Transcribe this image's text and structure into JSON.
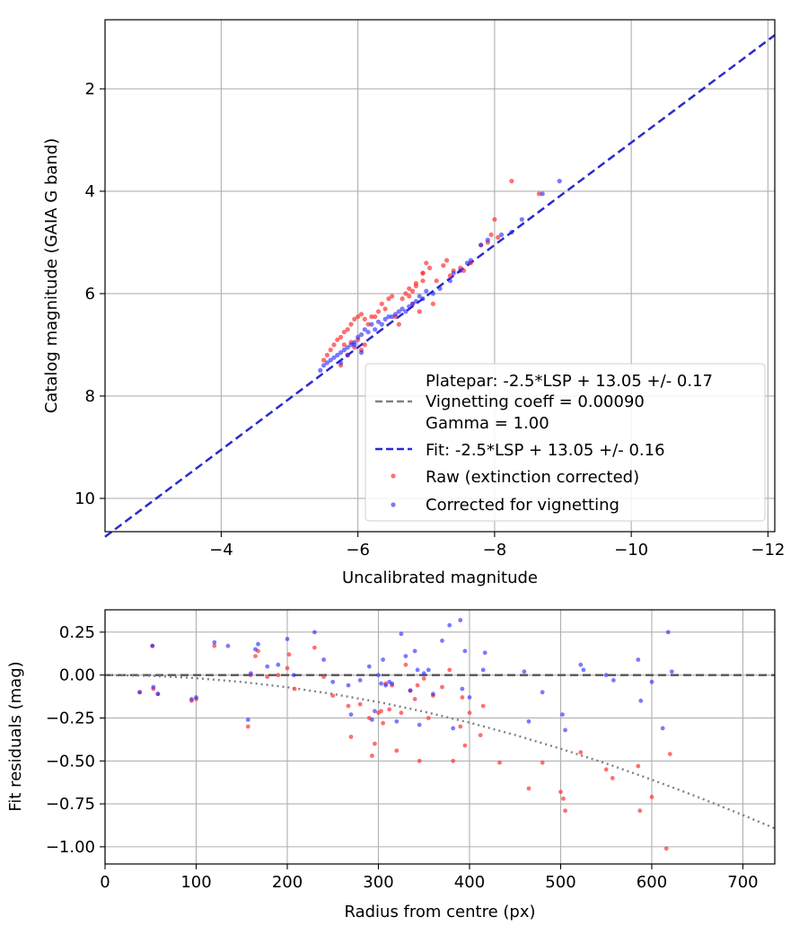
{
  "chart_data": [
    {
      "type": "scatter",
      "title": "",
      "xlabel": "Uncalibrated magnitude",
      "ylabel": "Catalog magnitude (GAIA G band)",
      "xlim": [
        -2.3,
        -12.1
      ],
      "ylim": [
        10.65,
        0.65
      ],
      "x_inverted": true,
      "y_inverted": true,
      "grid": true,
      "legend_position": "lower-right",
      "x_ticks": [
        -4,
        -6,
        -8,
        -10,
        -12
      ],
      "x_tick_labels": [
        "−4",
        "−6",
        "−8",
        "−10",
        "−12"
      ],
      "y_ticks": [
        2,
        4,
        6,
        8,
        10
      ],
      "y_tick_labels": [
        "2",
        "4",
        "6",
        "8",
        "10"
      ],
      "lines": [
        {
          "name": "Platepar: -2.5*LSP + 13.05 +/- 0.17\nVignetting coeff = 0.00090\nGamma = 1.00",
          "color": "#808080",
          "dash": "dashed",
          "x": [
            -2.3,
            -12.1
          ],
          "y": [
            10.75,
            0.95
          ]
        },
        {
          "name": "Fit: -2.5*LSP + 13.05 +/- 0.16",
          "color": "#2a2ad4",
          "dash": "dashed",
          "x": [
            -2.3,
            -12.1
          ],
          "y": [
            10.75,
            0.95
          ]
        }
      ],
      "series": [
        {
          "name": "Raw (extinction corrected)",
          "color": "#ff3333",
          "x": [
            -8.25,
            -8.65,
            -8.0,
            -7.95,
            -7.8,
            -7.5,
            -7.3,
            -7.25,
            -7.0,
            -6.95,
            -6.85,
            -6.8,
            -7.05,
            -6.95,
            -6.75,
            -6.7,
            -6.5,
            -6.4,
            -6.3,
            -6.05,
            -6.0,
            -5.95,
            -5.9,
            -5.85,
            -5.8,
            -5.75,
            -5.7,
            -5.65,
            -6.45,
            -6.35,
            -6.2,
            -6.1,
            -6.55,
            -6.6,
            -6.9,
            -7.1,
            -7.35,
            -7.4,
            -7.15,
            -5.6,
            -5.55,
            -5.5,
            -6.25,
            -6.15,
            -5.9,
            -5.8,
            -5.95,
            -6.0,
            -6.05,
            -6.1,
            -5.85,
            -6.75,
            -6.65,
            -6.8,
            -7.55,
            -7.65,
            -5.75,
            -6.85,
            -6.95,
            -7.9,
            -8.05
          ],
          "y": [
            3.8,
            4.05,
            4.55,
            4.85,
            5.05,
            5.5,
            5.35,
            5.45,
            5.4,
            5.6,
            5.8,
            5.95,
            5.5,
            5.6,
            5.9,
            6.0,
            6.05,
            6.3,
            6.35,
            6.4,
            6.45,
            6.5,
            6.6,
            6.7,
            6.75,
            6.85,
            6.9,
            7.0,
            6.1,
            6.2,
            6.45,
            6.5,
            6.45,
            6.6,
            6.35,
            6.2,
            5.65,
            5.55,
            5.75,
            7.1,
            7.2,
            7.3,
            6.45,
            6.6,
            6.95,
            7.0,
            7.05,
            6.9,
            7.1,
            7.0,
            7.2,
            6.05,
            6.1,
            6.2,
            5.55,
            5.4,
            7.4,
            5.85,
            5.75,
            5.0,
            4.9
          ],
          "point_count": 61
        },
        {
          "name": "Corrected for vignetting",
          "color": "#2222ff",
          "x": [
            -8.95,
            -8.7,
            -8.4,
            -8.1,
            -7.9,
            -7.65,
            -7.5,
            -7.35,
            -7.2,
            -7.1,
            -6.95,
            -6.85,
            -6.75,
            -6.6,
            -6.55,
            -6.45,
            -6.4,
            -6.3,
            -6.2,
            -6.1,
            -6.05,
            -6.0,
            -5.95,
            -5.9,
            -5.85,
            -5.8,
            -5.75,
            -5.7,
            -5.65,
            -5.6,
            -5.55,
            -5.5,
            -5.45,
            -6.65,
            -6.7,
            -6.8,
            -6.9,
            -7.0,
            -6.25,
            -6.15,
            -5.95,
            -6.05,
            -6.35,
            -6.5,
            -5.85,
            -5.75,
            -7.4,
            -7.6,
            -7.8,
            -8.25
          ],
          "y": [
            3.8,
            4.05,
            4.55,
            4.85,
            4.95,
            5.35,
            5.55,
            5.75,
            5.9,
            6.0,
            6.1,
            6.15,
            6.25,
            6.35,
            6.4,
            6.45,
            6.5,
            6.55,
            6.6,
            6.7,
            6.8,
            6.85,
            6.95,
            7.0,
            7.05,
            7.1,
            7.15,
            7.2,
            7.25,
            7.3,
            7.35,
            7.4,
            7.5,
            6.3,
            6.35,
            6.2,
            6.05,
            5.95,
            6.7,
            6.75,
            7.0,
            7.15,
            6.6,
            6.45,
            7.2,
            7.35,
            5.6,
            5.4,
            5.05,
            4.8
          ],
          "point_count": 50
        }
      ]
    },
    {
      "type": "scatter",
      "title": "",
      "xlabel": "Radius from centre (px)",
      "ylabel": "Fit residuals (mag)",
      "xlim": [
        0,
        735
      ],
      "ylim": [
        -1.1,
        0.38
      ],
      "grid": true,
      "x_ticks": [
        0,
        100,
        200,
        300,
        400,
        500,
        600,
        700
      ],
      "x_tick_labels": [
        "0",
        "100",
        "200",
        "300",
        "400",
        "500",
        "600",
        "700"
      ],
      "y_ticks": [
        0.25,
        0.0,
        -0.25,
        -0.5,
        -0.75,
        -1.0
      ],
      "y_tick_labels": [
        "0.25",
        "0.00",
        "−0.25",
        "−0.50",
        "−0.75",
        "−1.00"
      ],
      "lines": [
        {
          "name": "zero",
          "color": "#555555",
          "dash": "dashed",
          "x": [
            0,
            735
          ],
          "y": [
            0,
            0
          ]
        },
        {
          "name": "vignetting model",
          "color": "#808080",
          "dash": "dotted",
          "x": [
            0,
            50,
            100,
            150,
            200,
            250,
            300,
            350,
            400,
            450,
            500,
            550,
            600,
            650,
            700,
            735
          ],
          "y": [
            0.0,
            -0.004,
            -0.018,
            -0.04,
            -0.071,
            -0.11,
            -0.157,
            -0.213,
            -0.277,
            -0.349,
            -0.429,
            -0.515,
            -0.609,
            -0.709,
            -0.815,
            -0.893
          ]
        }
      ],
      "series": [
        {
          "name": "Raw (extinction corrected)",
          "color": "#ff3333",
          "x": [
            38,
            52,
            53,
            58,
            95,
            100,
            120,
            157,
            160,
            165,
            168,
            178,
            190,
            200,
            202,
            208,
            230,
            240,
            250,
            267,
            270,
            280,
            290,
            293,
            296,
            300,
            303,
            305,
            308,
            312,
            315,
            320,
            325,
            330,
            335,
            340,
            343,
            345,
            350,
            355,
            360,
            370,
            378,
            382,
            390,
            392,
            395,
            400,
            412,
            415,
            433,
            465,
            480,
            500,
            503,
            505,
            522,
            550,
            557,
            585,
            587,
            600,
            616,
            620
          ],
          "y": [
            -0.1,
            0.17,
            -0.08,
            -0.11,
            -0.15,
            -0.14,
            0.17,
            -0.3,
            -0.0,
            0.11,
            0.14,
            -0.01,
            0.0,
            0.04,
            0.12,
            -0.08,
            0.16,
            -0.01,
            -0.12,
            -0.18,
            -0.36,
            -0.17,
            -0.25,
            -0.47,
            -0.4,
            -0.22,
            -0.21,
            -0.28,
            -0.05,
            -0.2,
            -0.06,
            -0.44,
            -0.22,
            0.06,
            -0.09,
            -0.14,
            -0.06,
            -0.5,
            -0.02,
            -0.25,
            -0.12,
            -0.07,
            0.03,
            -0.5,
            -0.3,
            -0.13,
            -0.41,
            -0.22,
            -0.35,
            -0.18,
            -0.51,
            -0.66,
            -0.51,
            -0.68,
            -0.72,
            -0.79,
            -0.45,
            -0.55,
            -0.6,
            -0.53,
            -0.79,
            -0.71,
            -1.01,
            -0.46
          ],
          "point_count": 64
        },
        {
          "name": "Corrected for vignetting",
          "color": "#2222ff",
          "x": [
            38,
            52,
            53,
            58,
            95,
            100,
            120,
            135,
            157,
            160,
            165,
            168,
            178,
            190,
            200,
            207,
            230,
            240,
            250,
            267,
            270,
            280,
            290,
            293,
            296,
            300,
            303,
            305,
            308,
            312,
            315,
            320,
            325,
            330,
            335,
            340,
            343,
            345,
            350,
            355,
            360,
            370,
            378,
            382,
            390,
            392,
            395,
            400,
            415,
            417,
            460,
            465,
            480,
            502,
            505,
            522,
            525,
            550,
            558,
            585,
            588,
            600,
            612,
            618,
            622
          ],
          "y": [
            -0.1,
            0.17,
            -0.07,
            -0.11,
            -0.14,
            -0.13,
            0.19,
            0.17,
            -0.26,
            0.01,
            0.15,
            0.18,
            0.05,
            0.06,
            0.21,
            0.0,
            0.25,
            0.09,
            -0.04,
            -0.06,
            -0.23,
            -0.03,
            0.05,
            -0.26,
            -0.21,
            0.0,
            -0.05,
            0.09,
            -0.06,
            -0.04,
            -0.05,
            -0.27,
            0.24,
            0.11,
            -0.09,
            0.14,
            0.03,
            -0.29,
            0.01,
            0.03,
            -0.11,
            0.2,
            0.29,
            -0.31,
            0.32,
            -0.08,
            0.14,
            -0.13,
            0.03,
            0.13,
            0.02,
            -0.27,
            -0.1,
            -0.23,
            -0.32,
            0.06,
            0.03,
            0.0,
            -0.03,
            0.09,
            -0.15,
            -0.04,
            -0.31,
            0.25,
            0.02
          ],
          "point_count": 65
        }
      ]
    }
  ],
  "legend": {
    "items": [
      {
        "label": "Platepar: -2.5*LSP + 13.05 +/- 0.17",
        "color": "#808080",
        "kind": "dashed-line"
      },
      {
        "label": "Vignetting coeff = 0.00090",
        "color": "",
        "kind": "text"
      },
      {
        "label": "Gamma = 1.00",
        "color": "",
        "kind": "text"
      },
      {
        "label": "Fit: -2.5*LSP + 13.05 +/- 0.16",
        "color": "#2a2ad4",
        "kind": "dashed-line"
      },
      {
        "label": "Raw (extinction corrected)",
        "color": "#ff3333",
        "kind": "marker"
      },
      {
        "label": "Corrected for vignetting",
        "color": "#2222ff",
        "kind": "marker"
      }
    ]
  }
}
